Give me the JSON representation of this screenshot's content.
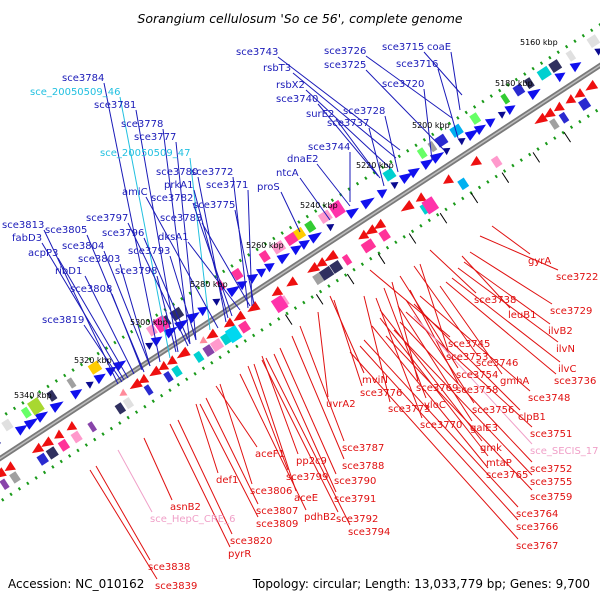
{
  "title": "Sorangium cellulosum 'So ce 56', complete genome",
  "footer": {
    "accession": "Accession: NC_010162",
    "summary": "Topology: circular; Length: 13,033,779 bp; Genes: 9,700"
  },
  "colors": {
    "forward_label": "#1a1ab8",
    "reverse_label": "#e01010",
    "misc_forward": "#22c0e0",
    "misc_reverse": "#f0a0c8",
    "genome_line": "#7a7a7a",
    "tick_dot": "#1a9a1a"
  },
  "kbp_ticks": [
    "5160 kbp",
    "5180 kbp",
    "5200 kbp",
    "5220 kbp",
    "5240 kbp",
    "5260 kbp",
    "5280 kbp",
    "5300 kbp",
    "5320 kbp",
    "5340 kbp"
  ],
  "forward_labels": [
    {
      "text": "sce3715",
      "color": "#1a1ab8"
    },
    {
      "text": "coaE",
      "color": "#1a1ab8"
    },
    {
      "text": "sce3726",
      "color": "#1a1ab8"
    },
    {
      "text": "sce3716",
      "color": "#1a1ab8"
    },
    {
      "text": "sce3725",
      "color": "#1a1ab8"
    },
    {
      "text": "sce3743",
      "color": "#1a1ab8"
    },
    {
      "text": "rsbT3",
      "color": "#1a1ab8"
    },
    {
      "text": "sce3720",
      "color": "#1a1ab8"
    },
    {
      "text": "sce3784",
      "color": "#1a1ab8"
    },
    {
      "text": "rsbX2",
      "color": "#1a1ab8"
    },
    {
      "text": "sce_20050509_46",
      "color": "#22c0e0"
    },
    {
      "text": "sce3740",
      "color": "#1a1ab8"
    },
    {
      "text": "sce3781",
      "color": "#1a1ab8"
    },
    {
      "text": "surE2",
      "color": "#1a1ab8"
    },
    {
      "text": "sce3728",
      "color": "#1a1ab8"
    },
    {
      "text": "sce3778",
      "color": "#1a1ab8"
    },
    {
      "text": "sce3737",
      "color": "#1a1ab8"
    },
    {
      "text": "sce3777",
      "color": "#1a1ab8"
    },
    {
      "text": "sce3744",
      "color": "#1a1ab8"
    },
    {
      "text": "sce_20050509_47",
      "color": "#22c0e0"
    },
    {
      "text": "dnaE2",
      "color": "#1a1ab8"
    },
    {
      "text": "sce3780",
      "color": "#1a1ab8"
    },
    {
      "text": "sce3772",
      "color": "#1a1ab8"
    },
    {
      "text": "ntcA",
      "color": "#1a1ab8"
    },
    {
      "text": "prkA1",
      "color": "#1a1ab8"
    },
    {
      "text": "sce3771",
      "color": "#1a1ab8"
    },
    {
      "text": "amiC",
      "color": "#1a1ab8"
    },
    {
      "text": "proS",
      "color": "#1a1ab8"
    },
    {
      "text": "sce3782",
      "color": "#1a1ab8"
    },
    {
      "text": "sce3775",
      "color": "#1a1ab8"
    },
    {
      "text": "sce3797",
      "color": "#1a1ab8"
    },
    {
      "text": "sce3783",
      "color": "#1a1ab8"
    },
    {
      "text": "sce3813",
      "color": "#1a1ab8"
    },
    {
      "text": "sce3805",
      "color": "#1a1ab8"
    },
    {
      "text": "sce3796",
      "color": "#1a1ab8"
    },
    {
      "text": "dksA1",
      "color": "#1a1ab8"
    },
    {
      "text": "fabD3",
      "color": "#1a1ab8"
    },
    {
      "text": "sce3804",
      "color": "#1a1ab8"
    },
    {
      "text": "sce3793",
      "color": "#1a1ab8"
    },
    {
      "text": "acpP3",
      "color": "#1a1ab8"
    },
    {
      "text": "sce3803",
      "color": "#1a1ab8"
    },
    {
      "text": "ribD1",
      "color": "#1a1ab8"
    },
    {
      "text": "sce3798",
      "color": "#1a1ab8"
    },
    {
      "text": "sce3808",
      "color": "#1a1ab8"
    },
    {
      "text": "sce3819",
      "color": "#1a1ab8"
    }
  ],
  "reverse_labels": [
    {
      "text": "gyrA",
      "color": "#e01010"
    },
    {
      "text": "sce3722",
      "color": "#e01010"
    },
    {
      "text": "sce3738",
      "color": "#e01010"
    },
    {
      "text": "sce3729",
      "color": "#e01010"
    },
    {
      "text": "leuB1",
      "color": "#e01010"
    },
    {
      "text": "ilvB2",
      "color": "#e01010"
    },
    {
      "text": "ilvN",
      "color": "#e01010"
    },
    {
      "text": "sce3745",
      "color": "#e01010"
    },
    {
      "text": "ilvC",
      "color": "#e01010"
    },
    {
      "text": "sce3753",
      "color": "#e01010"
    },
    {
      "text": "sce3746",
      "color": "#e01010"
    },
    {
      "text": "sce3736",
      "color": "#e01010"
    },
    {
      "text": "sce3754",
      "color": "#e01010"
    },
    {
      "text": "gmhA",
      "color": "#e01010"
    },
    {
      "text": "mviN",
      "color": "#e01010"
    },
    {
      "text": "sce3769",
      "color": "#e01010"
    },
    {
      "text": "sce3758",
      "color": "#e01010"
    },
    {
      "text": "sce3776",
      "color": "#e01010"
    },
    {
      "text": "sce3748",
      "color": "#e01010"
    },
    {
      "text": "uvrA2",
      "color": "#e01010"
    },
    {
      "text": "yloC",
      "color": "#e01010"
    },
    {
      "text": "sce3773",
      "color": "#e01010"
    },
    {
      "text": "sce3756",
      "color": "#e01010"
    },
    {
      "text": "clpB1",
      "color": "#e01010"
    },
    {
      "text": "sce3770",
      "color": "#e01010"
    },
    {
      "text": "galE3",
      "color": "#e01010"
    },
    {
      "text": "sce3751",
      "color": "#e01010"
    },
    {
      "text": "gmk",
      "color": "#e01010"
    },
    {
      "text": "sce_SECIS_17",
      "color": "#f0a0c8"
    },
    {
      "text": "sce3787",
      "color": "#e01010"
    },
    {
      "text": "mtaP",
      "color": "#e01010"
    },
    {
      "text": "aceF1",
      "color": "#e01010"
    },
    {
      "text": "pp2c9",
      "color": "#e01010"
    },
    {
      "text": "sce3752",
      "color": "#e01010"
    },
    {
      "text": "sce3788",
      "color": "#e01010"
    },
    {
      "text": "sce3765",
      "color": "#e01010"
    },
    {
      "text": "sce3799",
      "color": "#e01010"
    },
    {
      "text": "sce3755",
      "color": "#e01010"
    },
    {
      "text": "def1",
      "color": "#e01010"
    },
    {
      "text": "sce3790",
      "color": "#e01010"
    },
    {
      "text": "sce3806",
      "color": "#e01010"
    },
    {
      "text": "sce3759",
      "color": "#e01010"
    },
    {
      "text": "aceE",
      "color": "#e01010"
    },
    {
      "text": "sce3791",
      "color": "#e01010"
    },
    {
      "text": "sce3807",
      "color": "#e01010"
    },
    {
      "text": "asnB2",
      "color": "#e01010"
    },
    {
      "text": "pdhB2",
      "color": "#e01010"
    },
    {
      "text": "sce3764",
      "color": "#e01010"
    },
    {
      "text": "sce3809",
      "color": "#e01010"
    },
    {
      "text": "sce3792",
      "color": "#e01010"
    },
    {
      "text": "sce_HepC_CRE_6",
      "color": "#f0a0c8"
    },
    {
      "text": "sce3766",
      "color": "#e01010"
    },
    {
      "text": "sce3794",
      "color": "#e01010"
    },
    {
      "text": "sce3820",
      "color": "#e01010"
    },
    {
      "text": "sce3767",
      "color": "#e01010"
    },
    {
      "text": "pyrR",
      "color": "#e01010"
    },
    {
      "text": "sce3838",
      "color": "#e01010"
    },
    {
      "text": "sce3839",
      "color": "#e01010"
    }
  ]
}
